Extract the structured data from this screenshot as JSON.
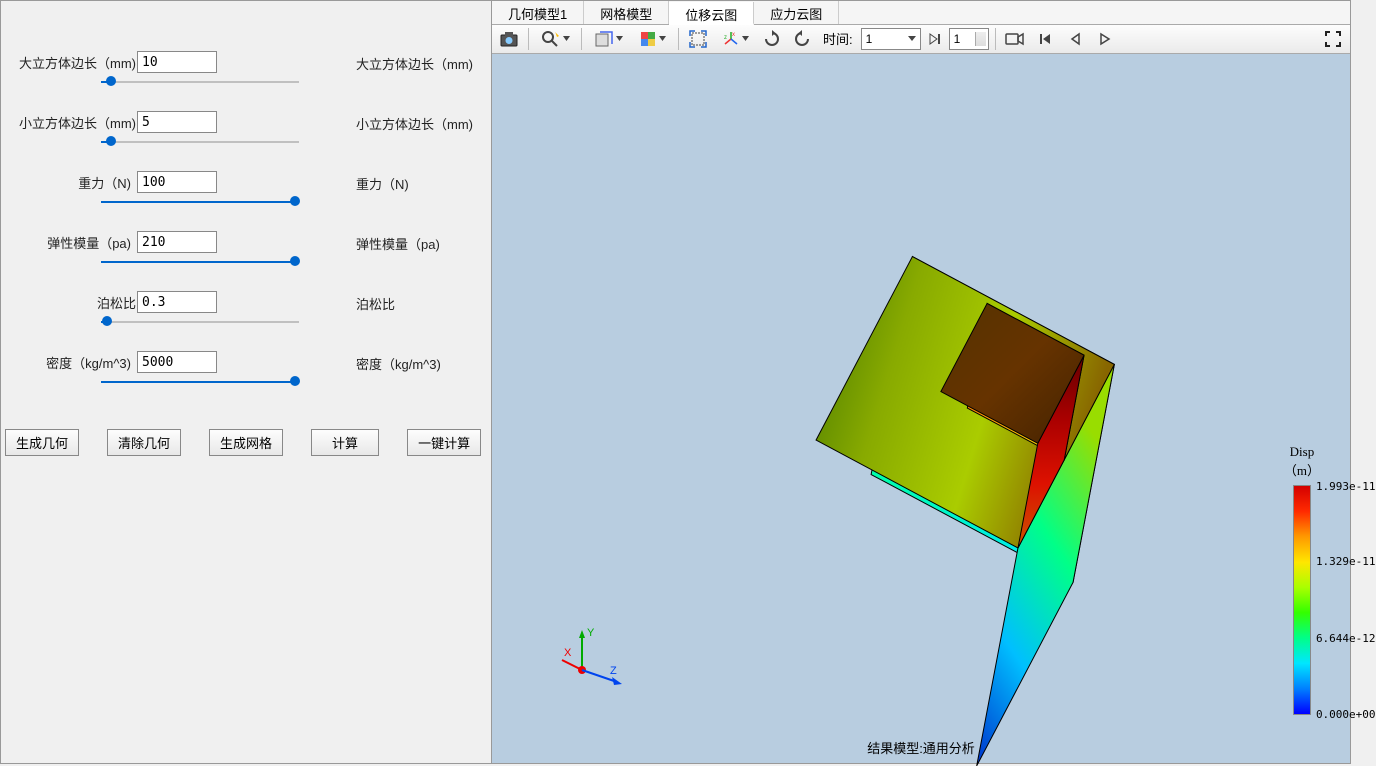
{
  "params": [
    {
      "label": "大立方体边长（mm)",
      "value": "10",
      "display": "大立方体边长（mm)",
      "fill_pct": 5,
      "label_w": 118
    },
    {
      "label": "小立方体边长（mm)",
      "value": "5",
      "display": "小立方体边长（mm)",
      "fill_pct": 5,
      "label_w": 118
    },
    {
      "label": "重力（N)",
      "value": "100",
      "display": "重力（N)",
      "fill_pct": 98,
      "label_w": 68
    },
    {
      "label": "弹性模量（pa)",
      "value": "210",
      "display": "弹性模量（pa)",
      "fill_pct": 98,
      "label_w": 90
    },
    {
      "label": "泊松比",
      "value": "0.3",
      "display": "泊松比",
      "fill_pct": 3,
      "label_w": 40
    },
    {
      "label": "密度（kg/m^3)",
      "value": "5000",
      "display": "密度（kg/m^3)",
      "fill_pct": 98,
      "label_w": 96
    }
  ],
  "buttons": {
    "gen_geom": "生成几何",
    "clear_geom": "清除几何",
    "gen_mesh": "生成网格",
    "compute": "计算",
    "one_click": "一键计算"
  },
  "tabs": [
    {
      "label": "几何模型1",
      "active": false
    },
    {
      "label": "网格模型",
      "active": false
    },
    {
      "label": "位移云图",
      "active": true
    },
    {
      "label": "应力云图",
      "active": false
    }
  ],
  "toolbar": {
    "time_label": "时间:",
    "time_combo": "1",
    "time_spin": "1"
  },
  "viewport": {
    "bg_color": "#b8cde0",
    "footer": "结果模型:通用分析",
    "triad": {
      "x": "X",
      "y": "Y",
      "z": "Z"
    },
    "legend": {
      "title1": "Disp",
      "title2": "（m）",
      "ticks": [
        {
          "pos": 0,
          "label": "1.993e-11"
        },
        {
          "pos": 33,
          "label": "1.329e-11"
        },
        {
          "pos": 67,
          "label": "6.644e-12"
        },
        {
          "pos": 100,
          "label": "0.000e+00"
        }
      ]
    }
  },
  "cube": {
    "big_front_grad": [
      "#00e6ff",
      "#00ffaa",
      "#44ff00",
      "#ddff00"
    ],
    "big_side_grad": [
      "#0033cc",
      "#00bfff",
      "#00ff88",
      "#99dd00"
    ],
    "big_top_grad": [
      "#447700",
      "#88aa00",
      "#aacc00",
      "#886600"
    ],
    "small_front_grad": [
      "#ffee00",
      "#ff8800",
      "#ff2200",
      "#cc0000"
    ],
    "small_side_grad": [
      "#cc5500",
      "#dd1100",
      "#aa0000",
      "#660000"
    ],
    "small_top_grad": [
      "#553300",
      "#663300",
      "#442200"
    ]
  }
}
